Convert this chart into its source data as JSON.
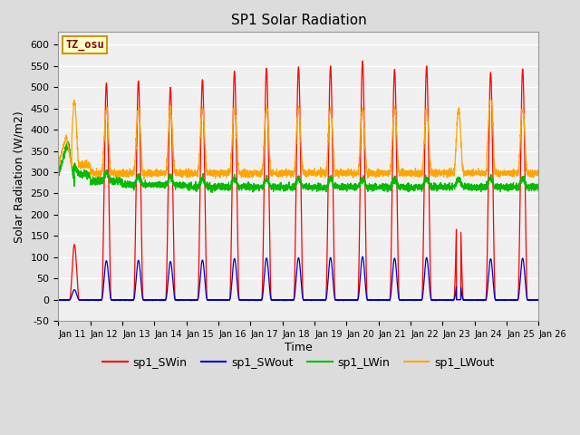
{
  "title": "SP1 Solar Radiation",
  "xlabel": "Time",
  "ylabel": "Solar Radiation (W/m2)",
  "ylim": [
    -50,
    630
  ],
  "yticks": [
    -50,
    0,
    50,
    100,
    150,
    200,
    250,
    300,
    350,
    400,
    450,
    500,
    550,
    600
  ],
  "tz_label": "TZ_osu",
  "legend": [
    "sp1_SWin",
    "sp1_SWout",
    "sp1_LWin",
    "sp1_LWout"
  ],
  "colors": {
    "sp1_SWin": "#ff0000",
    "sp1_SWout": "#0000cd",
    "sp1_LWin": "#00bb00",
    "sp1_LWout": "#ffa500"
  },
  "bg_color": "#dcdcdc",
  "plot_bg": "#f0f0f0",
  "n_points": 4320,
  "n_days": 15
}
